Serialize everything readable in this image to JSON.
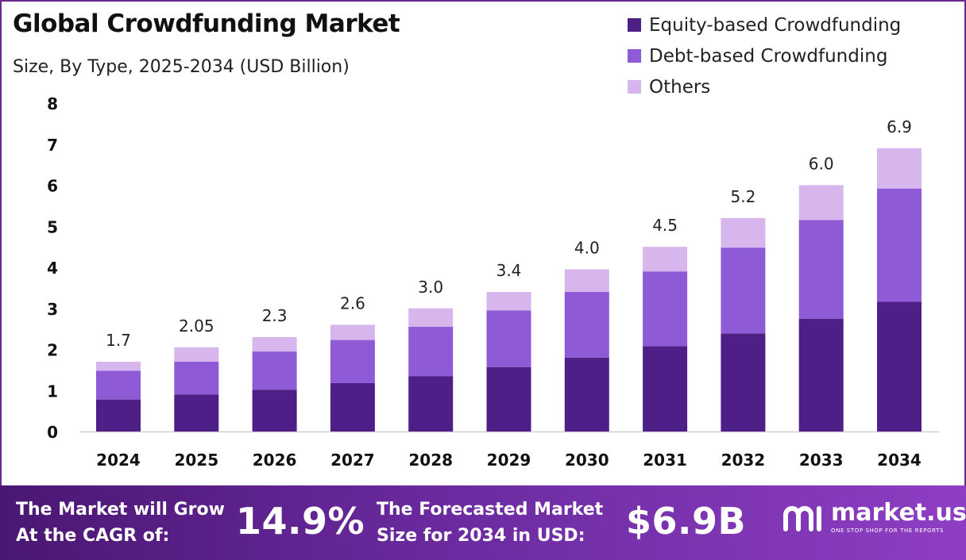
{
  "header": {
    "title": "Global Crowdfunding Market",
    "subtitle": "Size, By Type, 2025-2034 (USD Billion)"
  },
  "legend": [
    {
      "label": "Equity-based Crowdfunding",
      "color": "#4e1f86"
    },
    {
      "label": "Debt-based Crowdfunding",
      "color": "#8e5ad6"
    },
    {
      "label": "Others",
      "color": "#d7b6ee"
    }
  ],
  "chart_data": {
    "type": "bar",
    "stacked": true,
    "categories": [
      "2024",
      "2025",
      "2026",
      "2027",
      "2028",
      "2029",
      "2030",
      "2031",
      "2032",
      "2033",
      "2034"
    ],
    "series": [
      {
        "name": "Equity-based Crowdfunding",
        "color": "#4e1f86",
        "values": [
          0.78,
          0.9,
          1.02,
          1.18,
          1.35,
          1.57,
          1.8,
          2.08,
          2.39,
          2.75,
          3.16
        ]
      },
      {
        "name": "Debt-based Crowdfunding",
        "color": "#8e5ad6",
        "values": [
          0.7,
          0.8,
          0.93,
          1.05,
          1.2,
          1.38,
          1.6,
          1.82,
          2.09,
          2.4,
          2.76
        ]
      },
      {
        "name": "Others",
        "color": "#d7b6ee",
        "values": [
          0.22,
          0.35,
          0.35,
          0.37,
          0.45,
          0.45,
          0.55,
          0.6,
          0.72,
          0.85,
          0.98
        ]
      }
    ],
    "totals": [
      "1.7",
      "2.05",
      "2.3",
      "2.6",
      "3.0",
      "3.4",
      "4.0",
      "4.5",
      "5.2",
      "6.0",
      "6.9"
    ],
    "ylim": [
      0,
      8
    ],
    "yticks": [
      "0",
      "1",
      "2",
      "3",
      "4",
      "5",
      "6",
      "7",
      "8"
    ],
    "grid": false,
    "legend_position": "top-right"
  },
  "footer": {
    "cagr_label_line1": "The Market will Grow",
    "cagr_label_line2": "At the CAGR of:",
    "cagr_value": "14.9%",
    "forecast_label_line1": "The Forecasted Market",
    "forecast_label_line2": "Size for 2034 in USD:",
    "forecast_value": "$6.9B",
    "brand_name": "market.us",
    "brand_tagline": "ONE STOP SHOP FOR THE REPORTS"
  }
}
